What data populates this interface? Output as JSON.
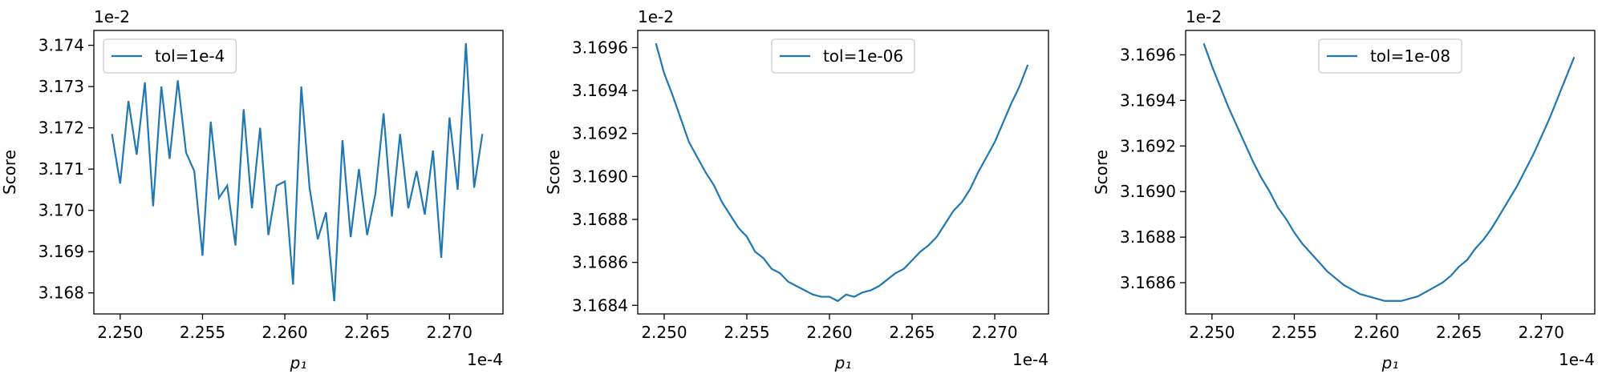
{
  "chart_data": [
    {
      "type": "line",
      "xlabel": "p₁",
      "ylabel": "Score",
      "x_offset_label": "1e-4",
      "y_offset_label": "1e-2",
      "legend": "upper left",
      "x": [
        2.2495,
        2.25,
        2.2505,
        2.251,
        2.2515,
        2.252,
        2.2525,
        2.253,
        2.2535,
        2.254,
        2.2545,
        2.255,
        2.2555,
        2.256,
        2.2565,
        2.257,
        2.2575,
        2.258,
        2.2585,
        2.259,
        2.2595,
        2.26,
        2.2605,
        2.261,
        2.2615,
        2.262,
        2.2625,
        2.263,
        2.2635,
        2.264,
        2.2645,
        2.265,
        2.2655,
        2.266,
        2.2665,
        2.267,
        2.2675,
        2.268,
        2.2685,
        2.269,
        2.2695,
        2.27,
        2.2705,
        2.271,
        2.2715,
        2.272
      ],
      "series": [
        {
          "name": "tol=1e-4",
          "color": "#1f77b4",
          "values": [
            3.17185,
            3.17065,
            3.17265,
            3.17135,
            3.1731,
            3.1701,
            3.173,
            3.17125,
            3.17315,
            3.1714,
            3.17095,
            3.1689,
            3.17215,
            3.1703,
            3.1706,
            3.16915,
            3.17245,
            3.17005,
            3.172,
            3.1694,
            3.1706,
            3.1707,
            3.1682,
            3.173,
            3.17055,
            3.1693,
            3.16995,
            3.1678,
            3.1717,
            3.16935,
            3.171,
            3.1694,
            3.1704,
            3.17235,
            3.16985,
            3.17185,
            3.17005,
            3.17095,
            3.1699,
            3.17145,
            3.16885,
            3.17225,
            3.1705,
            3.17405,
            3.17055,
            3.17185
          ]
        }
      ],
      "xlim": [
        2.2484,
        2.27325
      ],
      "ylim": [
        3.16749,
        3.17436
      ],
      "xticks": [
        {
          "value": 2.25,
          "label": "2.250"
        },
        2.255,
        {
          "value": 2.26,
          "label": "2.260"
        },
        2.265,
        {
          "value": 2.27,
          "label": "2.270"
        }
      ],
      "yticks": [
        3.168,
        3.169,
        {
          "value": 3.17,
          "label": "3.170"
        },
        3.171,
        3.172,
        3.173,
        3.174
      ]
    },
    {
      "type": "line",
      "xlabel": "p₁",
      "ylabel": "Score",
      "x_offset_label": "1e-4",
      "y_offset_label": "1e-2",
      "legend": "upper center",
      "x": [
        2.2495,
        2.25,
        2.2505,
        2.251,
        2.2515,
        2.252,
        2.2525,
        2.253,
        2.2535,
        2.254,
        2.2545,
        2.255,
        2.2555,
        2.256,
        2.2565,
        2.257,
        2.2575,
        2.258,
        2.2585,
        2.259,
        2.2595,
        2.26,
        2.2605,
        2.261,
        2.2615,
        2.262,
        2.2625,
        2.263,
        2.2635,
        2.264,
        2.2645,
        2.265,
        2.2655,
        2.266,
        2.2665,
        2.267,
        2.2675,
        2.268,
        2.2685,
        2.269,
        2.2695,
        2.27,
        2.2705,
        2.271,
        2.2715,
        2.272
      ],
      "series": [
        {
          "name": "tol=1e-06",
          "color": "#1f77b4",
          "values": [
            3.16962,
            3.16948,
            3.16938,
            3.16927,
            3.16916,
            3.16909,
            3.16902,
            3.16896,
            3.16888,
            3.16882,
            3.16876,
            3.16872,
            3.16865,
            3.16862,
            3.16857,
            3.16855,
            3.16851,
            3.16849,
            3.16847,
            3.16845,
            3.16844,
            3.16844,
            3.16842,
            3.16845,
            3.16844,
            3.16846,
            3.16847,
            3.16849,
            3.16852,
            3.16855,
            3.16857,
            3.16861,
            3.16865,
            3.16868,
            3.16872,
            3.16878,
            3.16884,
            3.16888,
            3.16894,
            3.16902,
            3.16909,
            3.16916,
            3.16925,
            3.16934,
            3.16942,
            3.16952
          ]
        }
      ],
      "xlim": [
        2.2484,
        2.27325
      ],
      "ylim": [
        3.16836,
        3.16968
      ],
      "xticks": [
        {
          "value": 2.25,
          "label": "2.250"
        },
        2.255,
        {
          "value": 2.26,
          "label": "2.260"
        },
        2.265,
        {
          "value": 2.27,
          "label": "2.270"
        }
      ],
      "yticks": [
        3.1684,
        3.1686,
        3.1688,
        {
          "value": 3.169,
          "label": "3.1690"
        },
        3.1692,
        3.1694,
        3.1696
      ]
    },
    {
      "type": "line",
      "xlabel": "p₁",
      "ylabel": "Score",
      "x_offset_label": "1e-4",
      "y_offset_label": "1e-2",
      "legend": "upper center",
      "x": [
        2.2495,
        2.25,
        2.2505,
        2.251,
        2.2515,
        2.252,
        2.2525,
        2.253,
        2.2535,
        2.254,
        2.2545,
        2.255,
        2.2555,
        2.256,
        2.2565,
        2.257,
        2.2575,
        2.258,
        2.2585,
        2.259,
        2.2595,
        2.26,
        2.2605,
        2.261,
        2.2615,
        2.262,
        2.2625,
        2.263,
        2.2635,
        2.264,
        2.2645,
        2.265,
        2.2655,
        2.266,
        2.2665,
        2.267,
        2.2675,
        2.268,
        2.2685,
        2.269,
        2.2695,
        2.27,
        2.2705,
        2.271,
        2.2715,
        2.272
      ],
      "series": [
        {
          "name": "tol=1e-08",
          "color": "#1f77b4",
          "values": [
            3.16965,
            3.16955,
            3.16946,
            3.16937,
            3.16929,
            3.16921,
            3.16913,
            3.16906,
            3.169,
            3.16893,
            3.16888,
            3.16882,
            3.16877,
            3.16873,
            3.16869,
            3.16865,
            3.16862,
            3.16859,
            3.16857,
            3.16855,
            3.16854,
            3.16853,
            3.16852,
            3.16852,
            3.16852,
            3.16853,
            3.16854,
            3.16856,
            3.16858,
            3.1686,
            3.16863,
            3.16867,
            3.1687,
            3.16875,
            3.16879,
            3.16884,
            3.1689,
            3.16896,
            3.16902,
            3.16909,
            3.16916,
            3.16924,
            3.16932,
            3.16941,
            3.1695,
            3.16959
          ]
        }
      ],
      "xlim": [
        2.2484,
        2.27325
      ],
      "ylim": [
        3.168463,
        3.169707
      ],
      "xticks": [
        {
          "value": 2.25,
          "label": "2.250"
        },
        2.255,
        {
          "value": 2.26,
          "label": "2.260"
        },
        2.265,
        {
          "value": 2.27,
          "label": "2.270"
        }
      ],
      "yticks": [
        3.1686,
        3.1688,
        {
          "value": 3.169,
          "label": "3.1690"
        },
        3.1692,
        3.1694,
        3.1696
      ]
    }
  ]
}
